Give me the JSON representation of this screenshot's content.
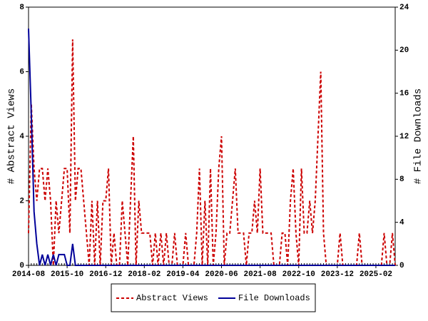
{
  "chart_data": {
    "type": "line",
    "x": [
      "2014-08",
      "2014-09",
      "2014-10",
      "2014-11",
      "2014-12",
      "2015-01",
      "2015-02",
      "2015-03",
      "2015-04",
      "2015-05",
      "2015-06",
      "2015-07",
      "2015-08",
      "2015-09",
      "2015-10",
      "2015-11",
      "2015-12",
      "2016-01",
      "2016-02",
      "2016-03",
      "2016-04",
      "2016-05",
      "2016-06",
      "2016-07",
      "2016-08",
      "2016-09",
      "2016-10",
      "2016-11",
      "2016-12",
      "2017-01",
      "2017-02",
      "2017-03",
      "2017-04",
      "2017-05",
      "2017-06",
      "2017-07",
      "2017-08",
      "2017-09",
      "2017-10",
      "2017-11",
      "2017-12",
      "2018-01",
      "2018-02",
      "2018-03",
      "2018-04",
      "2018-05",
      "2018-06",
      "2018-07",
      "2018-08",
      "2018-09",
      "2018-10",
      "2018-11",
      "2018-12",
      "2019-01",
      "2019-02",
      "2019-03",
      "2019-04",
      "2019-05",
      "2019-06",
      "2019-07",
      "2019-08",
      "2019-09",
      "2019-10",
      "2019-11",
      "2019-12",
      "2020-01",
      "2020-02",
      "2020-03",
      "2020-04",
      "2020-05",
      "2020-06",
      "2020-07",
      "2020-08",
      "2020-09",
      "2020-10",
      "2020-11",
      "2020-12",
      "2021-01",
      "2021-02",
      "2021-03",
      "2021-04",
      "2021-05",
      "2021-06",
      "2021-07",
      "2021-08",
      "2021-09",
      "2021-10",
      "2021-11",
      "2021-12",
      "2022-01",
      "2022-02",
      "2022-03",
      "2022-04",
      "2022-05",
      "2022-06",
      "2022-07",
      "2022-08",
      "2022-09",
      "2022-10",
      "2022-11",
      "2022-12",
      "2023-01",
      "2023-02",
      "2023-03",
      "2023-04",
      "2023-05",
      "2023-06",
      "2023-07",
      "2023-08",
      "2023-09",
      "2023-10",
      "2023-11",
      "2023-12",
      "2024-01",
      "2024-02",
      "2024-03",
      "2024-04",
      "2024-05",
      "2024-06",
      "2024-07",
      "2024-08",
      "2024-09",
      "2024-10",
      "2024-11",
      "2024-12",
      "2025-01",
      "2025-02",
      "2025-03",
      "2025-04",
      "2025-05",
      "2025-06",
      "2025-07",
      "2025-08",
      "2025-09"
    ],
    "series": [
      {
        "name": "Abstract Views",
        "color": "#cc0000",
        "dashed": true,
        "values": [
          1,
          5,
          3,
          2,
          3,
          3,
          2,
          3,
          2,
          0,
          2,
          1,
          2,
          3,
          3,
          1,
          7,
          2,
          3,
          3,
          2,
          1,
          0,
          2,
          0,
          2,
          0,
          2,
          2,
          3,
          0,
          1,
          0,
          0,
          2,
          1,
          0,
          2,
          4,
          0,
          2,
          1,
          1,
          1,
          1,
          0,
          1,
          0,
          1,
          0,
          1,
          0,
          0,
          1,
          0,
          0,
          0,
          1,
          0,
          0,
          0,
          1,
          3,
          0,
          2,
          0,
          3,
          0,
          1,
          3,
          4,
          0,
          1,
          1,
          2,
          3,
          1,
          1,
          1,
          0,
          1,
          1,
          2,
          1,
          3,
          1,
          1,
          1,
          1,
          0,
          0,
          0,
          1,
          1,
          0,
          2,
          3,
          1,
          0,
          3,
          1,
          1,
          2,
          1,
          2,
          4,
          6,
          1,
          0,
          0,
          0,
          0,
          0,
          1,
          0,
          0,
          0,
          0,
          0,
          0,
          1,
          0,
          0,
          0,
          0,
          0,
          0,
          0,
          0,
          1,
          0,
          0,
          1,
          0
        ]
      },
      {
        "name": "File Downloads",
        "color": "#000099",
        "axis": "y2",
        "values": [
          22,
          14,
          5,
          2,
          0,
          1,
          0,
          1,
          0,
          1,
          0,
          1,
          1,
          1,
          0,
          0,
          2,
          0,
          0,
          0,
          0,
          0,
          0,
          0,
          0,
          0,
          0,
          0,
          0,
          0,
          0,
          0,
          0,
          0,
          0,
          0,
          0,
          0,
          0,
          0,
          0,
          0,
          0,
          0,
          0,
          0,
          0,
          0,
          0,
          0,
          0,
          0,
          0,
          0,
          0,
          0,
          0,
          0,
          0,
          0,
          0,
          0,
          0,
          0,
          0,
          0,
          0,
          0,
          0,
          0,
          0,
          0,
          0,
          0,
          0,
          0,
          0,
          0,
          0,
          0,
          0,
          0,
          0,
          0,
          0,
          0,
          0,
          0,
          0,
          0,
          0,
          0,
          0,
          0,
          0,
          0,
          0,
          0,
          0,
          0,
          0,
          0,
          0,
          0,
          0,
          0,
          0,
          0,
          0,
          0,
          0,
          0,
          0,
          0,
          0,
          0,
          0,
          0,
          0,
          0,
          0,
          0,
          0,
          0,
          0,
          0,
          0,
          0,
          0,
          0,
          0,
          0,
          0,
          0
        ]
      }
    ],
    "ylabel": "# Abstract Views",
    "y2label": "# File Downloads",
    "ylim": [
      0,
      8
    ],
    "yticks": [
      0,
      2,
      4,
      6,
      8
    ],
    "y2lim": [
      0,
      24
    ],
    "y2ticks": [
      0,
      4,
      8,
      12,
      16,
      20,
      24
    ],
    "xticks": [
      "2014-08",
      "2015-10",
      "2016-12",
      "2018-02",
      "2019-04",
      "2020-06",
      "2021-08",
      "2022-10",
      "2023-12",
      "2025-02"
    ],
    "legend": "bottom"
  }
}
